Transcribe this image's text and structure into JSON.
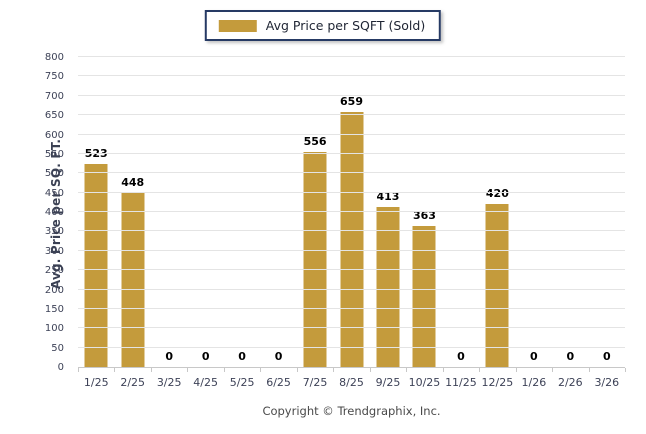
{
  "legend": {
    "label": "Avg Price per SQFT (Sold)"
  },
  "footer": {
    "copyright": "Copyright © Trendgraphix, Inc."
  },
  "colors": {
    "bar": "#C49B3C",
    "legend_border": "#263A64",
    "gridline": "#E4E4E4",
    "axis_line": "#C8C8C8",
    "tick_label": "#3D4257",
    "value_label": "#000000"
  },
  "chart_data": {
    "type": "bar",
    "title": "",
    "xlabel": "",
    "ylabel": "Avg. Price per SQ. FT.",
    "categories": [
      "1/25",
      "2/25",
      "3/25",
      "4/25",
      "5/25",
      "6/25",
      "7/25",
      "8/25",
      "9/25",
      "10/25",
      "11/25",
      "12/25",
      "1/26",
      "2/26",
      "3/26"
    ],
    "values": [
      523,
      448,
      0,
      0,
      0,
      0,
      556,
      659,
      413,
      363,
      0,
      420,
      0,
      0,
      0
    ],
    "series_name": "Avg Price per SQFT (Sold)",
    "ylim": [
      0,
      800
    ],
    "ytick_step": 50,
    "grid": true,
    "legend_position": "top-center",
    "value_labels_shown": true
  }
}
